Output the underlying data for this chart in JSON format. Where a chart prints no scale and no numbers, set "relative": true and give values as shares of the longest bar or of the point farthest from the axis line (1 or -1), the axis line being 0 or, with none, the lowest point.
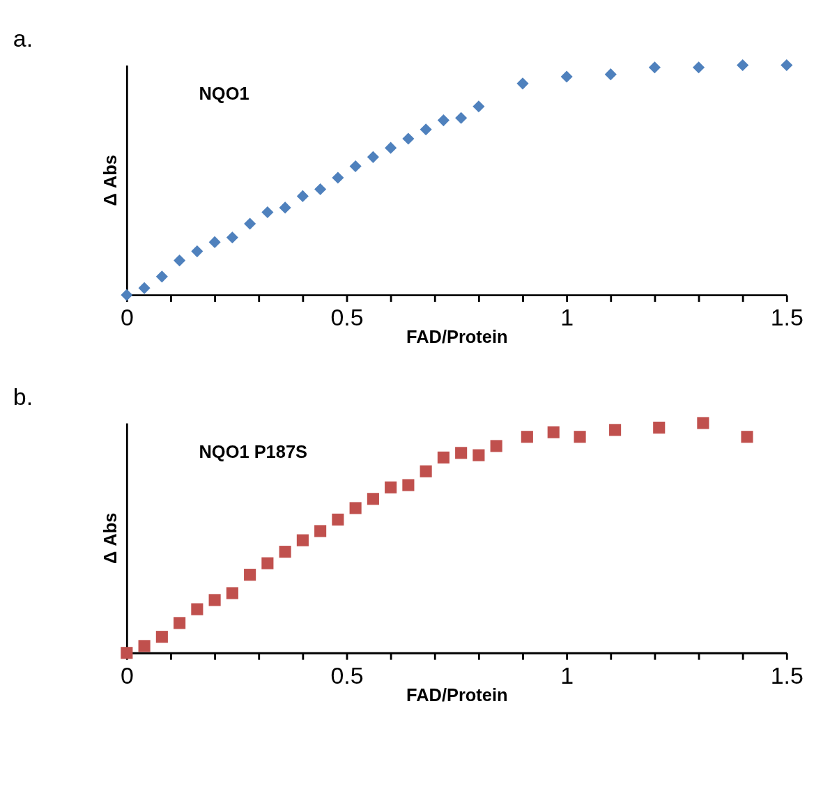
{
  "chart_data": [
    {
      "type": "scatter",
      "title": "a.",
      "xlabel": "FAD/Protein",
      "ylabel": "Δ Abs",
      "relative": true,
      "marker": "diamond",
      "legend": false,
      "grid": false,
      "xlim": [
        0,
        1.5
      ],
      "xticks": [
        0,
        {
          "value": 0.1,
          "label": null
        },
        {
          "value": 0.2,
          "label": null
        },
        {
          "value": 0.3,
          "label": null
        },
        {
          "value": 0.4,
          "label": null
        },
        0.5,
        {
          "value": 0.6,
          "label": null
        },
        {
          "value": 0.7,
          "label": null
        },
        {
          "value": 0.8,
          "label": null
        },
        {
          "value": 0.9,
          "label": null
        },
        1,
        {
          "value": 1.1,
          "label": null
        },
        {
          "value": 1.2,
          "label": null
        },
        {
          "value": 1.3,
          "label": null
        },
        {
          "value": 1.4,
          "label": null
        },
        1.5
      ],
      "series": [
        {
          "name": "NQO1",
          "color": "#4f81bd",
          "x": [
            0,
            0.04,
            0.08,
            0.12,
            0.16,
            0.2,
            0.24,
            0.28,
            0.32,
            0.36,
            0.4,
            0.44,
            0.48,
            0.52,
            0.56,
            0.6,
            0.64,
            0.68,
            0.72,
            0.76,
            0.8,
            0.9,
            1.0,
            1.1,
            1.2,
            1.3,
            1.4,
            1.5
          ],
          "values": [
            0,
            0.03,
            0.08,
            0.15,
            0.19,
            0.23,
            0.25,
            0.31,
            0.36,
            0.38,
            0.43,
            0.46,
            0.51,
            0.56,
            0.6,
            0.64,
            0.68,
            0.72,
            0.76,
            0.77,
            0.82,
            0.92,
            0.95,
            0.96,
            0.99,
            0.99,
            1.0,
            1.0
          ]
        }
      ]
    },
    {
      "type": "scatter",
      "title": "b.",
      "xlabel": "FAD/Protein",
      "ylabel": "Δ Abs",
      "relative": true,
      "marker": "square",
      "legend": false,
      "grid": false,
      "xlim": [
        0,
        1.5
      ],
      "xticks": [
        0,
        {
          "value": 0.1,
          "label": null
        },
        {
          "value": 0.2,
          "label": null
        },
        {
          "value": 0.3,
          "label": null
        },
        {
          "value": 0.4,
          "label": null
        },
        0.5,
        {
          "value": 0.6,
          "label": null
        },
        {
          "value": 0.7,
          "label": null
        },
        {
          "value": 0.8,
          "label": null
        },
        {
          "value": 0.9,
          "label": null
        },
        1,
        {
          "value": 1.1,
          "label": null
        },
        {
          "value": 1.2,
          "label": null
        },
        {
          "value": 1.3,
          "label": null
        },
        {
          "value": 1.4,
          "label": null
        },
        1.5
      ],
      "series": [
        {
          "name": "NQO1 P187S",
          "color": "#c0504d",
          "x": [
            0,
            0.04,
            0.08,
            0.12,
            0.16,
            0.2,
            0.24,
            0.28,
            0.32,
            0.36,
            0.4,
            0.44,
            0.48,
            0.52,
            0.56,
            0.6,
            0.64,
            0.68,
            0.72,
            0.76,
            0.8,
            0.84,
            0.91,
            0.97,
            1.03,
            1.11,
            1.21,
            1.31,
            1.41
          ],
          "values": [
            0,
            0.03,
            0.07,
            0.13,
            0.19,
            0.23,
            0.26,
            0.34,
            0.39,
            0.44,
            0.49,
            0.53,
            0.58,
            0.63,
            0.67,
            0.72,
            0.73,
            0.79,
            0.85,
            0.87,
            0.86,
            0.9,
            0.94,
            0.96,
            0.94,
            0.97,
            0.98,
            1.0,
            0.94
          ]
        }
      ]
    }
  ]
}
